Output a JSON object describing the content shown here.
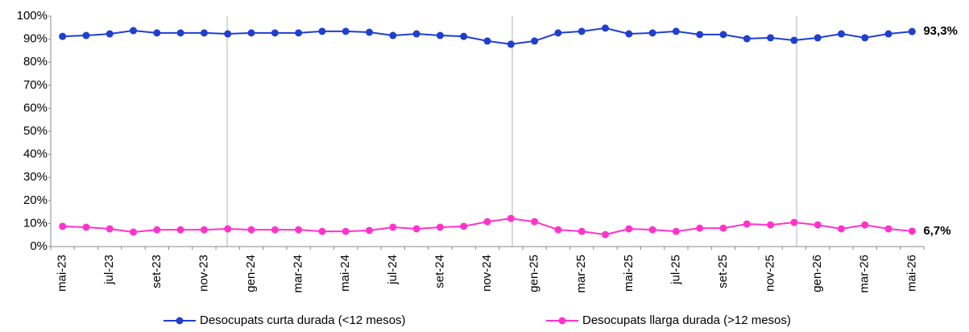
{
  "chart_data": {
    "type": "line",
    "categories": [
      "mai-23",
      null,
      "jul-23",
      null,
      "set-23",
      null,
      "nov-23",
      null,
      "gen-24",
      null,
      "mar-24",
      null,
      "mai-24",
      null,
      "jul-24",
      null,
      "set-24",
      null,
      "nov-24",
      null,
      "gen-25",
      null,
      "mar-25",
      null,
      "mai-25",
      null,
      "jul-25",
      null,
      "set-25",
      null,
      "nov-25",
      null,
      "gen-26",
      null,
      "mar-26",
      null,
      "mai-26"
    ],
    "series": [
      {
        "name": "Desocupats curta durada (<12 mesos)",
        "color": "#1f3fcf",
        "values": [
          91.2,
          91.6,
          92.3,
          93.7,
          92.7,
          92.7,
          92.7,
          92.3,
          92.7,
          92.7,
          92.7,
          93.4,
          93.4,
          93.0,
          91.6,
          92.3,
          91.6,
          91.2,
          89.2,
          87.8,
          89.2,
          92.7,
          93.4,
          94.8,
          92.3,
          92.7,
          93.4,
          92.0,
          92.0,
          90.2,
          90.6,
          89.5,
          90.6,
          92.3,
          90.6,
          92.3,
          93.3
        ],
        "value_labels": [
          null,
          null,
          null,
          null,
          null,
          null,
          null,
          null,
          null,
          null,
          null,
          null,
          null,
          null,
          null,
          null,
          null,
          null,
          null,
          null,
          null,
          null,
          null,
          null,
          null,
          null,
          null,
          null,
          null,
          null,
          null,
          null,
          null,
          null,
          null,
          null,
          "93,3%"
        ]
      },
      {
        "name": "Desocupats llarga durada (>12 mesos)",
        "color": "#ff33cc",
        "values": [
          8.8,
          8.4,
          7.7,
          6.3,
          7.3,
          7.3,
          7.3,
          7.7,
          7.3,
          7.3,
          7.3,
          6.6,
          6.6,
          7.0,
          8.4,
          7.7,
          8.4,
          8.8,
          10.8,
          12.2,
          10.8,
          7.3,
          6.6,
          5.2,
          7.7,
          7.3,
          6.6,
          8.0,
          8.0,
          9.8,
          9.4,
          10.5,
          9.4,
          7.7,
          9.4,
          7.7,
          6.7
        ],
        "value_labels": [
          null,
          null,
          null,
          null,
          null,
          null,
          null,
          null,
          null,
          null,
          null,
          null,
          null,
          null,
          null,
          null,
          null,
          null,
          null,
          null,
          null,
          null,
          null,
          null,
          null,
          null,
          null,
          null,
          null,
          null,
          null,
          null,
          null,
          null,
          null,
          null,
          "6,7%"
        ]
      }
    ],
    "ylim": [
      0,
      100
    ],
    "yticks": [
      {
        "value": 0,
        "label": "0%"
      },
      {
        "value": 10,
        "label": "10%"
      },
      {
        "value": 20,
        "label": "20%"
      },
      {
        "value": 30,
        "label": "30%"
      },
      {
        "value": 40,
        "label": "40%"
      },
      {
        "value": 50,
        "label": "50%"
      },
      {
        "value": 60,
        "label": "60%"
      },
      {
        "value": 70,
        "label": "70%"
      },
      {
        "value": 80,
        "label": "80%"
      },
      {
        "value": 90,
        "label": "90%"
      },
      {
        "value": 100,
        "label": "100%"
      }
    ],
    "grid": false
  }
}
